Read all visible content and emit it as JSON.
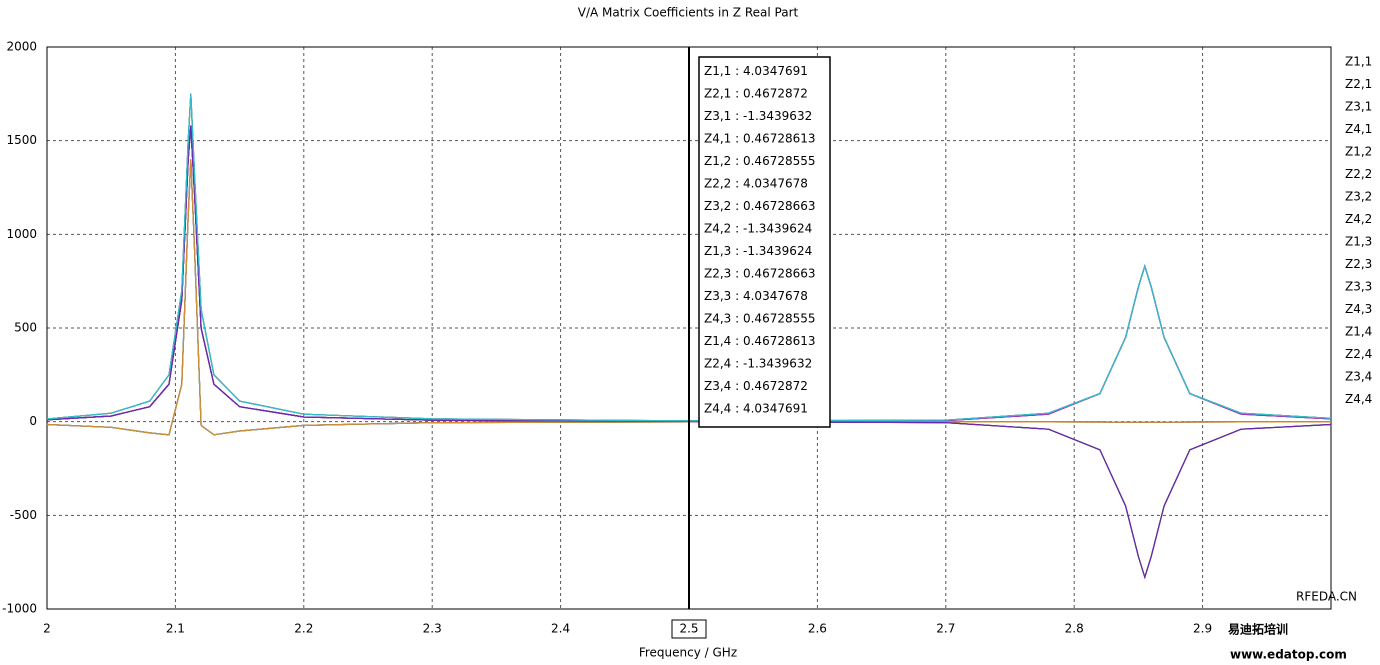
{
  "chart_data": {
    "type": "line",
    "title": "V/A Matrix Coefficients in Z Real Part",
    "x_label": "Frequency / GHz",
    "xlim": [
      2,
      3
    ],
    "xticks": [
      2,
      2.1,
      2.2,
      2.3,
      2.4,
      2.5,
      2.6,
      2.7,
      2.8,
      2.9
    ],
    "ylim": [
      -1000,
      2000
    ],
    "yticks": [
      -1000,
      -500,
      0,
      500,
      1000,
      1500,
      2000
    ],
    "grid": true,
    "legend": "right",
    "x": [
      2.0,
      2.05,
      2.08,
      2.095,
      2.105,
      2.11,
      2.112,
      2.115,
      2.12,
      2.13,
      2.15,
      2.2,
      2.3,
      2.5,
      2.7,
      2.78,
      2.82,
      2.84,
      2.85,
      2.855,
      2.86,
      2.87,
      2.89,
      2.93,
      3.0
    ],
    "series": [
      {
        "name": "Z1,1",
        "color": "#c8303a",
        "values": [
          14,
          45,
          110,
          250,
          700,
          1500,
          1750,
          1300,
          600,
          250,
          110,
          40,
          15,
          4,
          8,
          45,
          150,
          450,
          720,
          830,
          720,
          450,
          150,
          45,
          18
        ]
      },
      {
        "name": "Z2,1",
        "color": "#3ab54a",
        "values": [
          10,
          30,
          80,
          200,
          650,
          1400,
          1580,
          1200,
          500,
          200,
          80,
          25,
          8,
          0.47,
          -5,
          -40,
          -150,
          -450,
          -720,
          -830,
          -720,
          -450,
          -150,
          -40,
          -15
        ]
      },
      {
        "name": "Z3,1",
        "color": "#2a2a8a",
        "values": [
          -15,
          -30,
          -60,
          -70,
          200,
          1100,
          1400,
          900,
          -20,
          -70,
          -50,
          -20,
          -5,
          -1.34,
          -1,
          -1,
          -2,
          -3,
          -3,
          -3,
          -3,
          -3,
          -2,
          -1,
          -1
        ]
      },
      {
        "name": "Z4,1",
        "color": "#b030c0",
        "values": [
          10,
          30,
          80,
          200,
          650,
          1400,
          1580,
          1200,
          500,
          200,
          80,
          25,
          8,
          0.47,
          5,
          40,
          150,
          450,
          720,
          830,
          720,
          450,
          150,
          40,
          15
        ]
      },
      {
        "name": "Z1,2",
        "color": "#d4a040",
        "values": [
          10,
          30,
          80,
          200,
          650,
          1400,
          1580,
          1200,
          500,
          200,
          80,
          25,
          8,
          0.47,
          -5,
          -40,
          -150,
          -450,
          -720,
          -830,
          -720,
          -450,
          -150,
          -40,
          -15
        ]
      },
      {
        "name": "Z2,2",
        "color": "#8a2ad0",
        "values": [
          14,
          45,
          110,
          250,
          700,
          1500,
          1750,
          1300,
          600,
          250,
          110,
          40,
          15,
          4,
          8,
          45,
          150,
          450,
          720,
          830,
          720,
          450,
          150,
          45,
          18
        ]
      },
      {
        "name": "Z3,2",
        "color": "#40c8c8",
        "values": [
          10,
          30,
          80,
          200,
          650,
          1400,
          1580,
          1200,
          500,
          200,
          80,
          25,
          8,
          0.47,
          5,
          40,
          150,
          450,
          720,
          830,
          720,
          450,
          150,
          40,
          15
        ]
      },
      {
        "name": "Z4,2",
        "color": "#7a5a2a",
        "values": [
          -15,
          -30,
          -60,
          -70,
          200,
          1100,
          1400,
          900,
          -20,
          -70,
          -50,
          -20,
          -5,
          -1.34,
          -1,
          -1,
          -2,
          -3,
          -3,
          -3,
          -3,
          -3,
          -2,
          -1,
          -1
        ]
      },
      {
        "name": "Z1,3",
        "color": "#3a8ad0",
        "values": [
          -15,
          -30,
          -60,
          -70,
          200,
          1100,
          1400,
          900,
          -20,
          -70,
          -50,
          -20,
          -5,
          -1.34,
          -1,
          -1,
          -2,
          -3,
          -3,
          -3,
          -3,
          -3,
          -2,
          -1,
          -1
        ]
      },
      {
        "name": "Z2,3",
        "color": "#c83040",
        "values": [
          10,
          30,
          80,
          200,
          650,
          1400,
          1580,
          1200,
          500,
          200,
          80,
          25,
          8,
          0.47,
          5,
          40,
          150,
          450,
          720,
          830,
          720,
          450,
          150,
          40,
          15
        ]
      },
      {
        "name": "Z3,3",
        "color": "#3ab54a",
        "values": [
          14,
          45,
          110,
          250,
          700,
          1500,
          1750,
          1300,
          600,
          250,
          110,
          40,
          15,
          4,
          8,
          45,
          150,
          450,
          720,
          830,
          720,
          450,
          150,
          45,
          18
        ]
      },
      {
        "name": "Z4,3",
        "color": "#2a2a8a",
        "values": [
          10,
          30,
          80,
          200,
          650,
          1400,
          1580,
          1200,
          500,
          200,
          80,
          25,
          8,
          0.47,
          -5,
          -40,
          -150,
          -450,
          -720,
          -830,
          -720,
          -450,
          -150,
          -40,
          -15
        ]
      },
      {
        "name": "Z1,4",
        "color": "#a030c8",
        "values": [
          10,
          30,
          80,
          200,
          650,
          1400,
          1580,
          1200,
          500,
          200,
          80,
          25,
          8,
          0.47,
          5,
          40,
          150,
          450,
          720,
          830,
          720,
          450,
          150,
          40,
          15
        ]
      },
      {
        "name": "Z2,4",
        "color": "#d49030",
        "values": [
          -15,
          -30,
          -60,
          -70,
          200,
          1100,
          1400,
          900,
          -20,
          -70,
          -50,
          -20,
          -5,
          -1.34,
          -1,
          -1,
          -2,
          -3,
          -3,
          -3,
          -3,
          -3,
          -2,
          -1,
          -1
        ]
      },
      {
        "name": "Z3,4",
        "color": "#6a2ab0",
        "values": [
          10,
          30,
          80,
          200,
          650,
          1400,
          1580,
          1200,
          500,
          200,
          80,
          25,
          8,
          0.47,
          -5,
          -40,
          -150,
          -450,
          -720,
          -830,
          -720,
          -450,
          -150,
          -40,
          -15
        ]
      },
      {
        "name": "Z4,4",
        "color": "#30c0d0",
        "values": [
          14,
          45,
          110,
          250,
          700,
          1500,
          1750,
          1300,
          600,
          250,
          110,
          40,
          15,
          4,
          8,
          45,
          150,
          450,
          720,
          830,
          720,
          450,
          150,
          45,
          18
        ]
      }
    ],
    "marker": {
      "x": 2.5,
      "values": [
        4.0347691,
        0.4672872,
        -1.3439632,
        0.46728613,
        0.46728555,
        4.0347678,
        0.46728663,
        -1.3439624,
        -1.3439624,
        0.46728663,
        4.0347678,
        0.46728555,
        0.46728613,
        -1.3439632,
        0.4672872,
        4.0347691
      ]
    },
    "watermark": [
      "RFEDA.CN",
      "易迪拓培训",
      "www.edatop.com"
    ]
  }
}
